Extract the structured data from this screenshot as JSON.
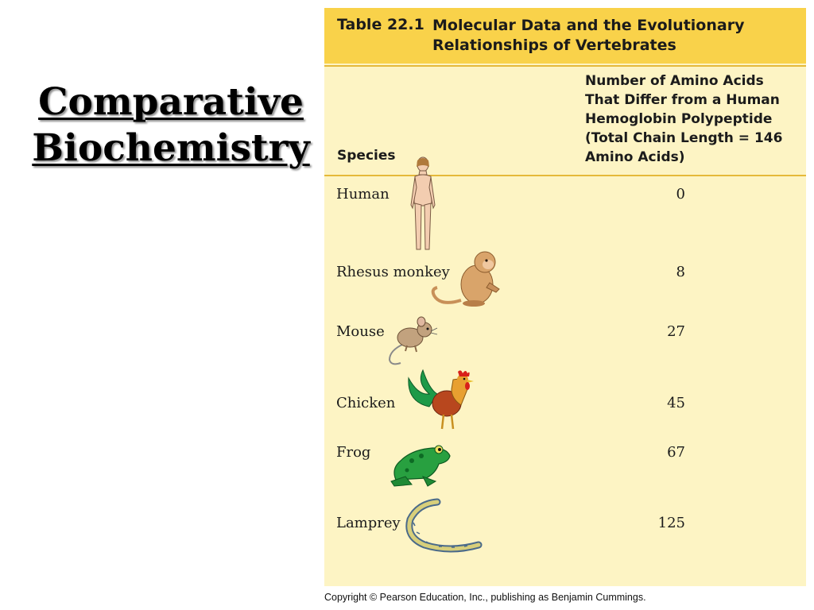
{
  "slide": {
    "title_line1": "Comparative",
    "title_line2": "Biochemistry"
  },
  "table": {
    "number": "Table 22.1",
    "title": "Molecular Data and the Evolutionary Relationships of Vertebrates",
    "column_species": "Species",
    "column_amino": "Number of Amino Acids\nThat Differ from a Human\nHemoglobin Polypeptide\n(Total Chain Length = 146\nAmino Acids)",
    "rows": [
      {
        "species": "Human",
        "value": "0",
        "icon": "human-figure-icon"
      },
      {
        "species": "Rhesus monkey",
        "value": "8",
        "icon": "monkey-icon"
      },
      {
        "species": "Mouse",
        "value": "27",
        "icon": "mouse-icon"
      },
      {
        "species": "Chicken",
        "value": "45",
        "icon": "chicken-icon"
      },
      {
        "species": "Frog",
        "value": "67",
        "icon": "frog-icon"
      },
      {
        "species": "Lamprey",
        "value": "125",
        "icon": "lamprey-icon"
      }
    ]
  },
  "colors": {
    "header_bar": "#f9d24a",
    "table_background": "#fdf4c4"
  },
  "copyright": "Copyright © Pearson Education, Inc., publishing as Benjamin Cummings."
}
